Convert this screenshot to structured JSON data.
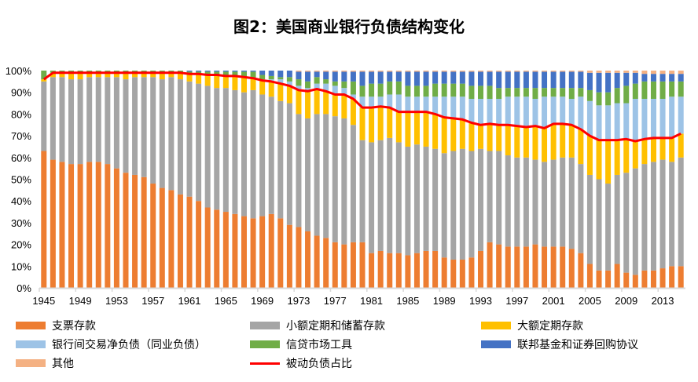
{
  "chart_data": {
    "type": "bar",
    "stacked": true,
    "title": "图2：美国商业银行负债结构变化",
    "x": [
      1945,
      1946,
      1947,
      1948,
      1949,
      1950,
      1951,
      1952,
      1953,
      1954,
      1955,
      1956,
      1957,
      1958,
      1959,
      1960,
      1961,
      1962,
      1963,
      1964,
      1965,
      1966,
      1967,
      1968,
      1969,
      1970,
      1971,
      1972,
      1973,
      1974,
      1975,
      1976,
      1977,
      1978,
      1979,
      1980,
      1981,
      1982,
      1983,
      1984,
      1985,
      1986,
      1987,
      1988,
      1989,
      1990,
      1991,
      1992,
      1993,
      1994,
      1995,
      1996,
      1997,
      1998,
      1999,
      2000,
      2001,
      2002,
      2003,
      2004,
      2005,
      2006,
      2007,
      2008,
      2009,
      2010,
      2011,
      2012,
      2013,
      2014,
      2015
    ],
    "x_tick_labels": [
      "1945",
      "1949",
      "1953",
      "1957",
      "1961",
      "1965",
      "1969",
      "1973",
      "1977",
      "1981",
      "1985",
      "1989",
      "1993",
      "1997",
      "2001",
      "2005",
      "2009",
      "2013"
    ],
    "y_tick_labels": [
      "0%",
      "10%",
      "20%",
      "30%",
      "40%",
      "50%",
      "60%",
      "70%",
      "80%",
      "90%",
      "100%"
    ],
    "ylim": [
      0,
      100
    ],
    "legend_position": "bottom",
    "series": [
      {
        "name": "支票存款",
        "color": "#ED7D31",
        "values": [
          63,
          59,
          58,
          57,
          57,
          58,
          58,
          57,
          55,
          53,
          52,
          51,
          48,
          46,
          45,
          43,
          42,
          40,
          37,
          36,
          35,
          34,
          33,
          32,
          33,
          34,
          32,
          29,
          28,
          26,
          24,
          23,
          21,
          20,
          21,
          21,
          16,
          17,
          16,
          16,
          15,
          16,
          17,
          17,
          14,
          13,
          13,
          14,
          17,
          21,
          20,
          19,
          19,
          19,
          20,
          19,
          19,
          19,
          18,
          16,
          11,
          8,
          8,
          11,
          7,
          6,
          8,
          8,
          9,
          10,
          10
        ]
      },
      {
        "name": "小额定期和储蓄存款",
        "color": "#A5A5A5",
        "values": [
          32,
          38,
          39,
          39,
          39,
          39,
          39,
          40,
          42,
          43,
          45,
          46,
          49,
          50,
          52,
          53,
          53,
          54,
          56,
          56,
          57,
          57,
          57,
          59,
          56,
          54,
          54,
          56,
          52,
          52,
          56,
          57,
          58,
          58,
          54,
          47,
          51,
          51,
          53,
          51,
          50,
          50,
          48,
          47,
          48,
          50,
          51,
          49,
          47,
          42,
          43,
          42,
          41,
          41,
          39,
          39,
          40,
          41,
          42,
          41,
          41,
          42,
          40,
          41,
          46,
          49,
          49,
          50,
          50,
          48,
          50
        ]
      },
      {
        "name": "大额定期存款",
        "color": "#FFC000",
        "values": [
          1,
          2,
          2,
          3,
          3,
          2,
          2,
          2,
          2,
          3,
          2,
          2,
          2,
          3,
          2,
          3,
          3.5,
          4.5,
          5,
          6,
          5.5,
          6.5,
          7,
          5.5,
          6.5,
          7,
          8,
          8,
          11,
          12.5,
          11.5,
          10.5,
          10,
          11,
          12,
          15,
          16,
          15.5,
          14,
          14,
          16,
          15,
          16,
          16,
          16.5,
          15,
          13.5,
          13,
          11,
          12.5,
          12,
          14,
          14.5,
          14,
          15.5,
          15.5,
          16.5,
          15.5,
          15,
          16,
          18,
          18,
          20,
          16,
          15.5,
          12.5,
          11.5,
          11,
          10,
          11,
          11
        ]
      },
      {
        "name": "银行间交易净负债（同业负债）",
        "color": "#9DC3E6",
        "values": [
          0,
          0,
          0,
          0,
          0,
          0,
          0,
          0,
          0,
          0,
          0,
          0,
          0,
          0,
          0,
          0,
          0,
          0,
          0,
          0,
          0,
          0,
          0,
          0,
          0.5,
          1,
          2,
          2,
          2,
          1.5,
          2.5,
          3.5,
          4,
          3,
          2,
          5,
          5,
          4.5,
          6,
          8,
          7,
          7,
          7,
          8,
          9.5,
          10,
          10.5,
          11,
          12,
          11.5,
          12,
          13,
          13.5,
          14,
          12.5,
          14.5,
          12.5,
          12.5,
          12,
          15,
          16,
          16,
          16,
          17,
          16.5,
          19.5,
          18.5,
          18,
          18,
          19,
          17
        ]
      },
      {
        "name": "信贷市场工具",
        "color": "#70AD47",
        "values": [
          4,
          1,
          1,
          1,
          1,
          1,
          1,
          1,
          1,
          1,
          1,
          1,
          1,
          1,
          1,
          1,
          1,
          1,
          1.5,
          1.5,
          2,
          2,
          2.5,
          3,
          2,
          1.5,
          1,
          2,
          3,
          3,
          3,
          2,
          2,
          3,
          6,
          5,
          6,
          6,
          6,
          6,
          5,
          5,
          5,
          6,
          6,
          6,
          6,
          6,
          6,
          6,
          5,
          4,
          4,
          4,
          5,
          4,
          4,
          4,
          5,
          4,
          5,
          6,
          6,
          7,
          8,
          7,
          8,
          8,
          8,
          7,
          7
        ]
      },
      {
        "name": "联邦基金和证券回购协议",
        "color": "#4472C4",
        "values": [
          0,
          0,
          0,
          0,
          0,
          0,
          0,
          0,
          0,
          0,
          0,
          0,
          0,
          0,
          0,
          0,
          0.5,
          0.5,
          0.5,
          0.5,
          0.5,
          0.5,
          0.5,
          0.5,
          2,
          2.5,
          3,
          3,
          3.5,
          4.5,
          2.5,
          3.5,
          4.5,
          4.5,
          4.5,
          6.5,
          5.5,
          5.5,
          4.5,
          4.5,
          6.5,
          6.5,
          6.5,
          5.5,
          5.5,
          5.5,
          5.5,
          6.5,
          6.5,
          6.5,
          7.5,
          7.5,
          7.5,
          7.5,
          7.5,
          7.5,
          7.5,
          7.5,
          7.5,
          7.5,
          8,
          9,
          9,
          7,
          6,
          5,
          3.5,
          3.5,
          3.5,
          3.5,
          3.5
        ]
      },
      {
        "name": "其他",
        "color": "#F4B183",
        "values": [
          0,
          0,
          0,
          0,
          0,
          0,
          0,
          0,
          0,
          0,
          0,
          0,
          0,
          0,
          0,
          0,
          0,
          0,
          0,
          0,
          0,
          0,
          0,
          0,
          0,
          0,
          0,
          0,
          0.5,
          0.5,
          0.5,
          0.5,
          0.5,
          0.5,
          0.5,
          0.5,
          0.5,
          0.5,
          0.5,
          0.5,
          0.5,
          0.5,
          0.5,
          0.5,
          0.5,
          0.5,
          0.5,
          0.5,
          0.5,
          0.5,
          0.5,
          0.5,
          0.5,
          0.5,
          0.5,
          0.5,
          0.5,
          0.5,
          0.5,
          0.5,
          1,
          1,
          1,
          1,
          1,
          1,
          1.5,
          1.5,
          1.5,
          1.5,
          1.5
        ]
      }
    ],
    "line_series": {
      "name": "被动负债占比",
      "color": "#FF0000",
      "values": [
        96,
        99,
        99,
        99,
        99,
        99,
        99,
        99,
        99,
        99,
        99,
        99,
        99,
        99,
        99,
        99,
        98.5,
        98.5,
        98,
        98,
        97.5,
        97.5,
        97,
        96.5,
        95.5,
        95,
        94,
        93,
        91,
        90.5,
        91.5,
        90.5,
        89,
        89,
        87,
        83,
        83,
        83.5,
        83,
        81,
        81,
        81,
        81,
        80,
        78.5,
        78,
        77.5,
        76,
        75,
        75.5,
        75,
        75,
        74.5,
        74,
        74.5,
        73.5,
        75.5,
        75.5,
        75,
        73,
        70,
        68,
        68,
        68,
        68.5,
        67.5,
        68.5,
        69,
        69,
        69,
        71
      ]
    }
  }
}
